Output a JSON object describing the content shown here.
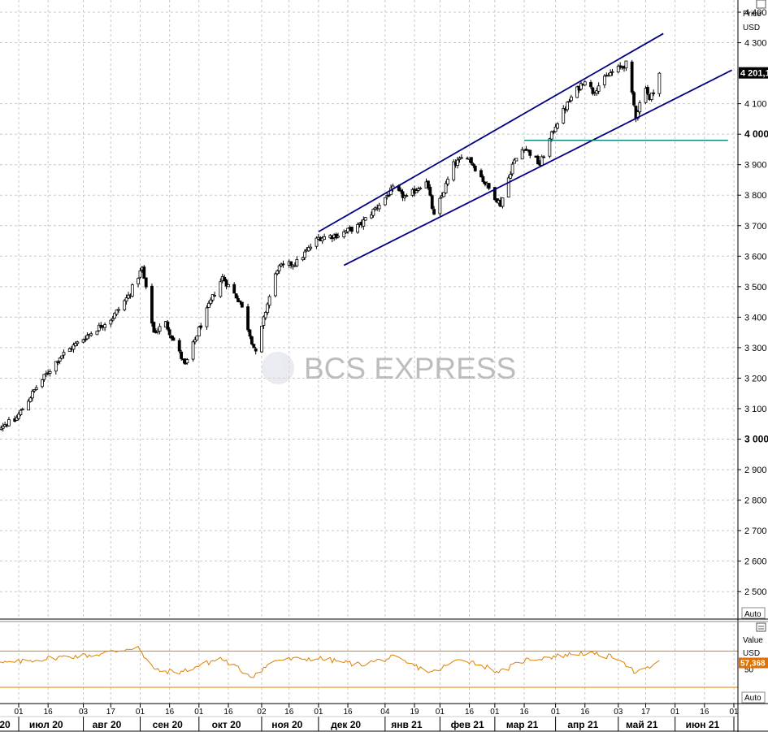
{
  "chart_data": [
    {
      "type": "candlestick",
      "title": "",
      "price_axis": {
        "header": "Price",
        "unit": "USD",
        "range": [
          2410,
          4440
        ],
        "ticks": [
          {
            "v": 2500,
            "label": "2 500",
            "bold": false
          },
          {
            "v": 2600,
            "label": "2 600",
            "bold": false
          },
          {
            "v": 2700,
            "label": "2 700",
            "bold": false
          },
          {
            "v": 2800,
            "label": "2 800",
            "bold": false
          },
          {
            "v": 2900,
            "label": "2 900",
            "bold": false
          },
          {
            "v": 3000,
            "label": "3 000",
            "bold": true
          },
          {
            "v": 3100,
            "label": "3 100",
            "bold": false
          },
          {
            "v": 3200,
            "label": "3 200",
            "bold": false
          },
          {
            "v": 3300,
            "label": "3 300",
            "bold": false
          },
          {
            "v": 3400,
            "label": "3 400",
            "bold": false
          },
          {
            "v": 3500,
            "label": "3 500",
            "bold": false
          },
          {
            "v": 3600,
            "label": "3 600",
            "bold": false
          },
          {
            "v": 3700,
            "label": "3 700",
            "bold": false
          },
          {
            "v": 3800,
            "label": "3 800",
            "bold": false
          },
          {
            "v": 3900,
            "label": "3 900",
            "bold": false
          },
          {
            "v": 4000,
            "label": "4 000",
            "bold": true
          },
          {
            "v": 4100,
            "label": "4 100",
            "bold": false
          },
          {
            "v": 4300,
            "label": "4 300",
            "bold": false
          },
          {
            "v": 4400,
            "label": "4 400",
            "bold": false
          }
        ],
        "last_price": 4201.1,
        "last_price_label": "4 201,1",
        "auto_label": "Auto"
      },
      "trendlines": [
        {
          "name": "channel-upper",
          "color": "#000080",
          "from": {
            "date": "2020-12-01",
            "value": 3680
          },
          "to": {
            "date": "2021-05-26",
            "value": 4330
          }
        },
        {
          "name": "channel-lower",
          "color": "#000080",
          "from": {
            "date": "2020-12-14",
            "value": 3570
          },
          "to": {
            "date": "2021-06-30",
            "value": 4210
          }
        },
        {
          "name": "horizontal-level",
          "color": "#008080",
          "from": {
            "date": "2021-03-16",
            "value": 3980
          },
          "to": {
            "date": "2021-06-28",
            "value": 3980
          }
        }
      ],
      "anchors": [
        {
          "date": "2020-06-15",
          "value": 3030
        },
        {
          "date": "2020-06-29",
          "value": 3060
        },
        {
          "date": "2020-07-10",
          "value": 3170
        },
        {
          "date": "2020-07-22",
          "value": 3270
        },
        {
          "date": "2020-08-05",
          "value": 3340
        },
        {
          "date": "2020-08-18",
          "value": 3400
        },
        {
          "date": "2020-08-26",
          "value": 3470
        },
        {
          "date": "2020-09-02",
          "value": 3560
        },
        {
          "date": "2020-09-08",
          "value": 3350
        },
        {
          "date": "2020-09-14",
          "value": 3380
        },
        {
          "date": "2020-09-24",
          "value": 3240
        },
        {
          "date": "2020-10-01",
          "value": 3360
        },
        {
          "date": "2020-10-09",
          "value": 3480
        },
        {
          "date": "2020-10-13",
          "value": 3530
        },
        {
          "date": "2020-10-22",
          "value": 3450
        },
        {
          "date": "2020-10-30",
          "value": 3280
        },
        {
          "date": "2020-11-04",
          "value": 3420
        },
        {
          "date": "2020-11-10",
          "value": 3560
        },
        {
          "date": "2020-11-20",
          "value": 3580
        },
        {
          "date": "2020-12-01",
          "value": 3660
        },
        {
          "date": "2020-12-11",
          "value": 3670
        },
        {
          "date": "2020-12-22",
          "value": 3700
        },
        {
          "date": "2021-01-08",
          "value": 3820
        },
        {
          "date": "2021-01-15",
          "value": 3790
        },
        {
          "date": "2021-01-25",
          "value": 3850
        },
        {
          "date": "2021-01-29",
          "value": 3730
        },
        {
          "date": "2021-02-08",
          "value": 3900
        },
        {
          "date": "2021-02-15",
          "value": 3930
        },
        {
          "date": "2021-02-25",
          "value": 3830
        },
        {
          "date": "2021-03-04",
          "value": 3770
        },
        {
          "date": "2021-03-10",
          "value": 3900
        },
        {
          "date": "2021-03-16",
          "value": 3960
        },
        {
          "date": "2021-03-24",
          "value": 3900
        },
        {
          "date": "2021-04-01",
          "value": 4030
        },
        {
          "date": "2021-04-09",
          "value": 4120
        },
        {
          "date": "2021-04-16",
          "value": 4180
        },
        {
          "date": "2021-04-20",
          "value": 4140
        },
        {
          "date": "2021-04-29",
          "value": 4200
        },
        {
          "date": "2021-05-07",
          "value": 4230
        },
        {
          "date": "2021-05-12",
          "value": 4060
        },
        {
          "date": "2021-05-17",
          "value": 4160
        },
        {
          "date": "2021-05-19",
          "value": 4110
        },
        {
          "date": "2021-05-24",
          "value": 4200
        }
      ],
      "start_open": 3090
    },
    {
      "type": "line",
      "name": "RSI",
      "value_axis": {
        "header": "Value",
        "unit": "USD",
        "range": [
          12,
          100
        ],
        "tick_label": "50",
        "tick_value": 50,
        "last_value": 57.368,
        "last_value_label": "57,368",
        "auto_label": "Auto"
      },
      "levels": [
        70,
        30
      ],
      "color": "#E08000",
      "anchors": [
        {
          "date": "2020-06-15",
          "value": 55
        },
        {
          "date": "2020-07-01",
          "value": 58
        },
        {
          "date": "2020-07-20",
          "value": 63
        },
        {
          "date": "2020-08-10",
          "value": 66
        },
        {
          "date": "2020-08-31",
          "value": 75
        },
        {
          "date": "2020-09-03",
          "value": 62
        },
        {
          "date": "2020-09-10",
          "value": 48
        },
        {
          "date": "2020-09-22",
          "value": 47
        },
        {
          "date": "2020-10-12",
          "value": 62
        },
        {
          "date": "2020-10-28",
          "value": 42
        },
        {
          "date": "2020-11-09",
          "value": 60
        },
        {
          "date": "2020-12-01",
          "value": 62
        },
        {
          "date": "2020-12-22",
          "value": 55
        },
        {
          "date": "2021-01-08",
          "value": 63
        },
        {
          "date": "2021-01-28",
          "value": 46
        },
        {
          "date": "2021-02-12",
          "value": 62
        },
        {
          "date": "2021-03-04",
          "value": 47
        },
        {
          "date": "2021-03-16",
          "value": 60
        },
        {
          "date": "2021-04-15",
          "value": 68
        },
        {
          "date": "2021-05-04",
          "value": 62
        },
        {
          "date": "2021-05-12",
          "value": 45
        },
        {
          "date": "2021-05-24",
          "value": 57.368
        }
      ]
    }
  ],
  "x_axis": {
    "day_ticks": [
      {
        "date": "2020-06-15",
        "label": ""
      },
      {
        "date": "2020-07-01",
        "label": "01"
      },
      {
        "date": "2020-07-16",
        "label": "16"
      },
      {
        "date": "2020-08-03",
        "label": "03"
      },
      {
        "date": "2020-08-17",
        "label": "17"
      },
      {
        "date": "2020-09-01",
        "label": "01"
      },
      {
        "date": "2020-09-16",
        "label": "16"
      },
      {
        "date": "2020-10-01",
        "label": "01"
      },
      {
        "date": "2020-10-16",
        "label": "16"
      },
      {
        "date": "2020-11-02",
        "label": "02"
      },
      {
        "date": "2020-11-16",
        "label": "16"
      },
      {
        "date": "2020-12-01",
        "label": "01"
      },
      {
        "date": "2020-12-16",
        "label": "16"
      },
      {
        "date": "2021-01-04",
        "label": "04"
      },
      {
        "date": "2021-01-19",
        "label": "19"
      },
      {
        "date": "2021-02-01",
        "label": "01"
      },
      {
        "date": "2021-02-16",
        "label": "16"
      },
      {
        "date": "2021-03-01",
        "label": "01"
      },
      {
        "date": "2021-03-16",
        "label": "16"
      },
      {
        "date": "2021-04-01",
        "label": "01"
      },
      {
        "date": "2021-04-16",
        "label": "16"
      },
      {
        "date": "2021-05-03",
        "label": "03"
      },
      {
        "date": "2021-05-17",
        "label": "17"
      },
      {
        "date": "2021-06-01",
        "label": "01"
      },
      {
        "date": "2021-06-16",
        "label": "16"
      },
      {
        "date": "2021-07-01",
        "label": "01"
      }
    ],
    "month_labels": [
      {
        "date": "2020-06-10",
        "label": "20"
      },
      {
        "date": "2020-07-15",
        "label": "июл 20"
      },
      {
        "date": "2020-08-15",
        "label": "авг 20"
      },
      {
        "date": "2020-09-15",
        "label": "сен 20"
      },
      {
        "date": "2020-10-15",
        "label": "окт 20"
      },
      {
        "date": "2020-11-15",
        "label": "ноя 20"
      },
      {
        "date": "2020-12-15",
        "label": "дек 20"
      },
      {
        "date": "2021-01-15",
        "label": "янв 21"
      },
      {
        "date": "2021-02-15",
        "label": "фев 21"
      },
      {
        "date": "2021-03-15",
        "label": "мар 21"
      },
      {
        "date": "2021-04-15",
        "label": "апр 21"
      },
      {
        "date": "2021-05-15",
        "label": "май 21"
      },
      {
        "date": "2021-06-15",
        "label": "июн 21"
      }
    ]
  },
  "watermark": "BCS EXPRESS",
  "colors": {
    "candle": "#000000",
    "channel": "#000080",
    "level": "#008080",
    "rsi": "#E08000",
    "grid": "#C8C8C8",
    "last_price_bg": "#000000",
    "last_rsi_bg": "#E07000"
  }
}
